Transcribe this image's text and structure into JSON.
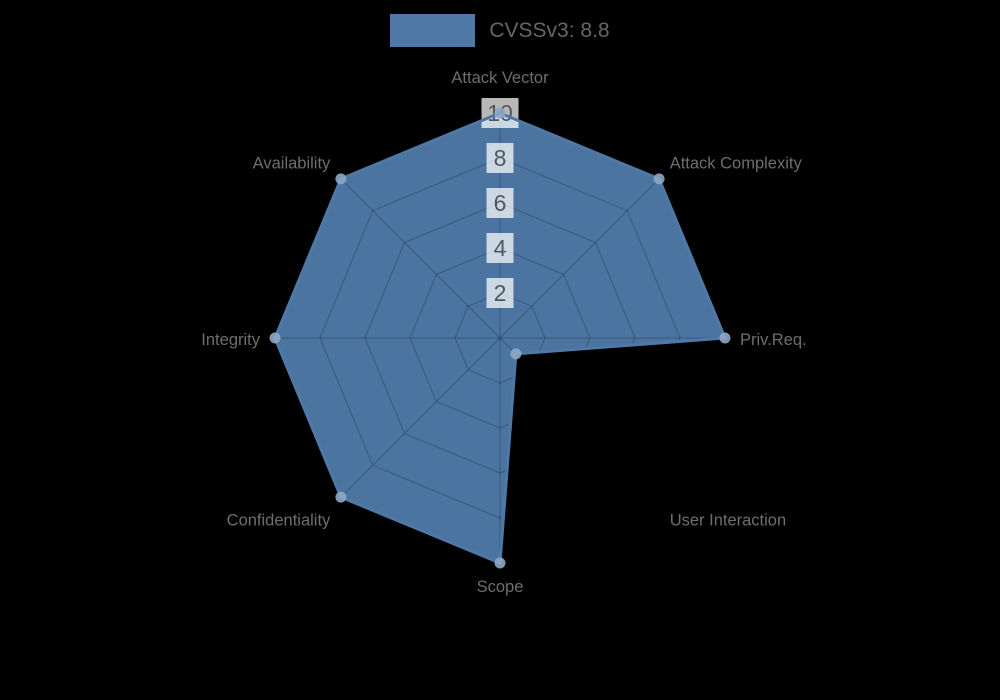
{
  "page": {
    "background_color": "#000000"
  },
  "legend": {
    "position": "top",
    "items": [
      {
        "label": "CVSSv3: 8.8",
        "color": "#4e79a7"
      }
    ]
  },
  "chart_data": {
    "type": "radar",
    "title": "",
    "categories": [
      "Attack Vector",
      "Attack Complexity",
      "Priv.Req.",
      "User Interaction",
      "Scope",
      "Confidentiality",
      "Integrity",
      "Availability"
    ],
    "series": [
      {
        "name": "CVSSv3: 8.8",
        "values": [
          10,
          10,
          10,
          1,
          10,
          10,
          10,
          10
        ],
        "color": "#4e79a7"
      }
    ],
    "rmin": 0,
    "rmax": 10,
    "ticks": [
      2,
      4,
      6,
      8,
      10
    ],
    "tick_axis": "top",
    "grid": true,
    "grid_shape": "polygon",
    "legend_position": "top",
    "colors": {
      "series_fill": "#4e79a7",
      "series_stroke": "#4e79a7",
      "marker": "#8da8c5",
      "grid_line": "rgba(0,0,0,0.18)",
      "axis_label": "#6e6e6e",
      "tick_label": "#50585f",
      "tick_backdrop": "rgba(255,255,255,0.72)",
      "background": "#000000"
    }
  }
}
